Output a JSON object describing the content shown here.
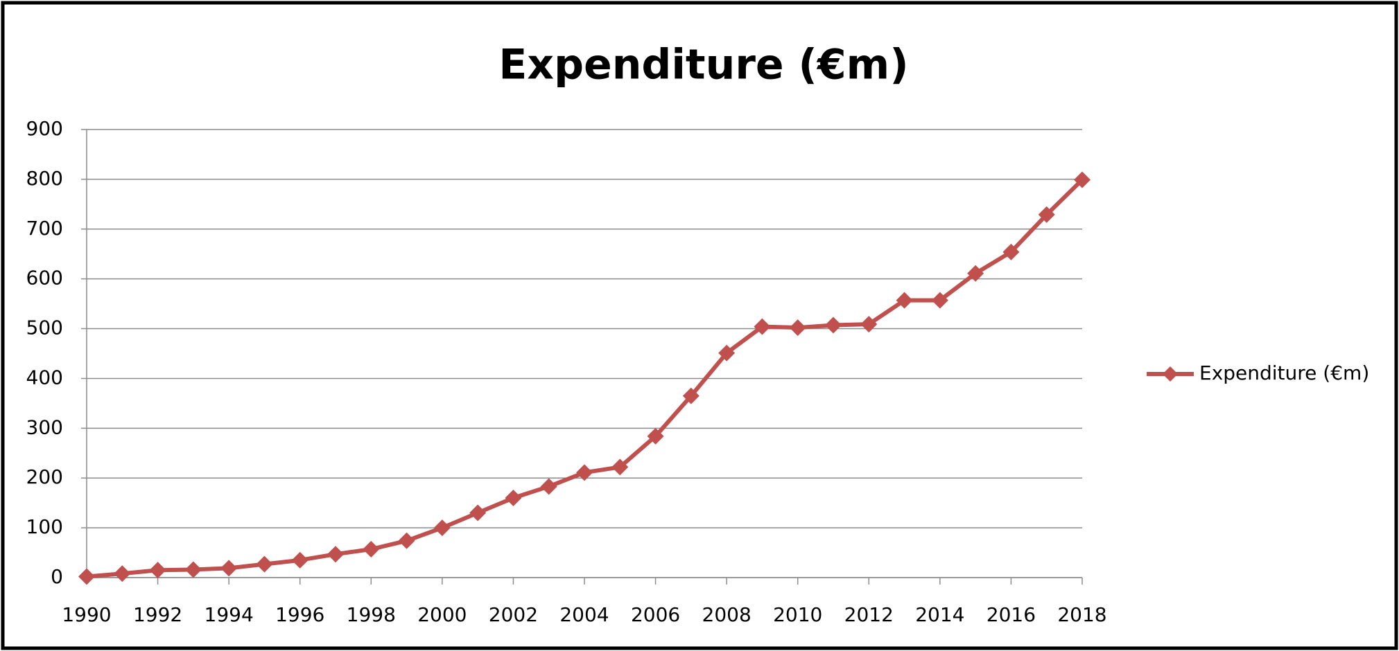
{
  "chart_data": {
    "type": "line",
    "title": "Expenditure (€m)",
    "x": [
      1990,
      1991,
      1992,
      1993,
      1994,
      1995,
      1996,
      1997,
      1998,
      1999,
      2000,
      2001,
      2002,
      2003,
      2004,
      2005,
      2006,
      2007,
      2008,
      2009,
      2010,
      2011,
      2012,
      2013,
      2014,
      2015,
      2016,
      2017,
      2018
    ],
    "series": [
      {
        "name": "Expenditure (€m)",
        "color": "#c0504d",
        "values": [
          2,
          8,
          15,
          16,
          19,
          27,
          35,
          47,
          57,
          74,
          100,
          130,
          160,
          183,
          211,
          222,
          284,
          365,
          451,
          504,
          502,
          507,
          509,
          557,
          557,
          611,
          654,
          729,
          799
        ]
      }
    ],
    "xlim": [
      1990,
      2018
    ],
    "xticks": [
      1990,
      1992,
      1994,
      1996,
      1998,
      2000,
      2002,
      2004,
      2006,
      2008,
      2010,
      2012,
      2014,
      2016,
      2018
    ],
    "ylim": [
      0,
      900
    ],
    "yticks": [
      0,
      100,
      200,
      300,
      400,
      500,
      600,
      700,
      800,
      900
    ],
    "grid": true,
    "legend": "right"
  }
}
